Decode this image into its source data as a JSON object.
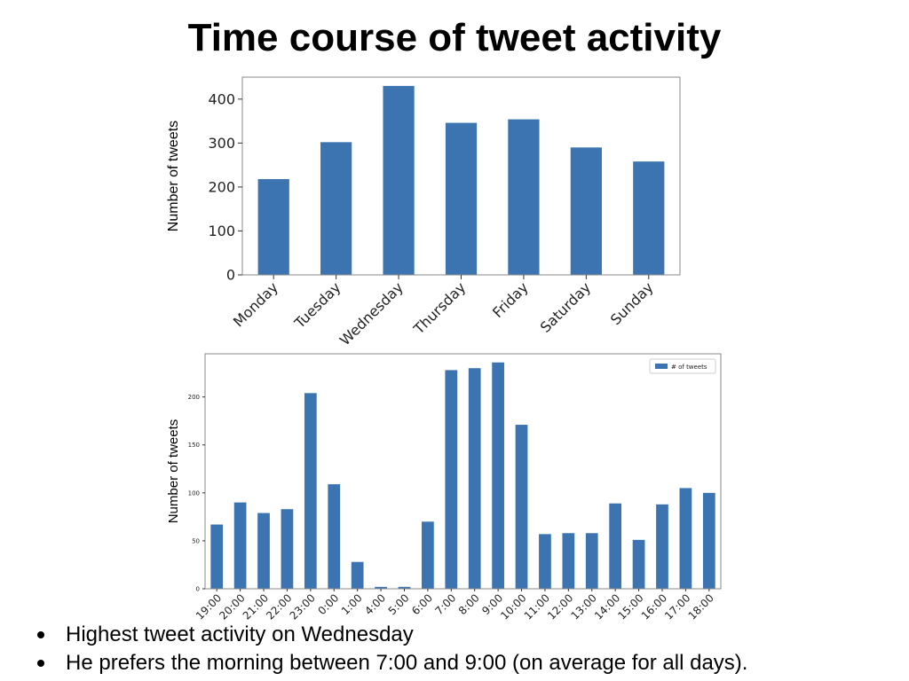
{
  "title": "Time course of tweet activity",
  "bullets": [
    "Highest tweet activity on Wednesday",
    "He prefers the morning between 7:00 and 9:00 (on average for all days)."
  ],
  "colors": {
    "bar": "#3b74b0",
    "frame": "#888888"
  },
  "chart_data": [
    {
      "type": "bar",
      "categories": [
        "Monday",
        "Tuesday",
        "Wednesday",
        "Thursday",
        "Friday",
        "Saturday",
        "Sunday"
      ],
      "values": [
        218,
        302,
        430,
        346,
        354,
        290,
        258
      ],
      "title": "",
      "xlabel": "",
      "ylabel": "Number of tweets",
      "ylim": [
        0,
        450
      ],
      "yticks": [
        0,
        100,
        200,
        300,
        400
      ],
      "legend": null,
      "grid": false
    },
    {
      "type": "bar",
      "categories": [
        "19:00",
        "20:00",
        "21:00",
        "22:00",
        "23:00",
        "0:00",
        "1:00",
        "4:00",
        "5:00",
        "6:00",
        "7:00",
        "8:00",
        "9:00",
        "10:00",
        "11:00",
        "12:00",
        "13:00",
        "14:00",
        "15:00",
        "16:00",
        "17:00",
        "18:00"
      ],
      "values": [
        67,
        90,
        79,
        83,
        204,
        109,
        28,
        2,
        2,
        70,
        228,
        230,
        236,
        171,
        57,
        58,
        58,
        89,
        51,
        88,
        105,
        100
      ],
      "title": "",
      "xlabel": "",
      "ylabel": "Number of tweets",
      "ylim": [
        0,
        245
      ],
      "yticks": [
        0,
        50,
        100,
        150,
        200
      ],
      "legend": {
        "position": "top-right",
        "entries": [
          "# of tweets"
        ]
      },
      "grid": false
    }
  ]
}
